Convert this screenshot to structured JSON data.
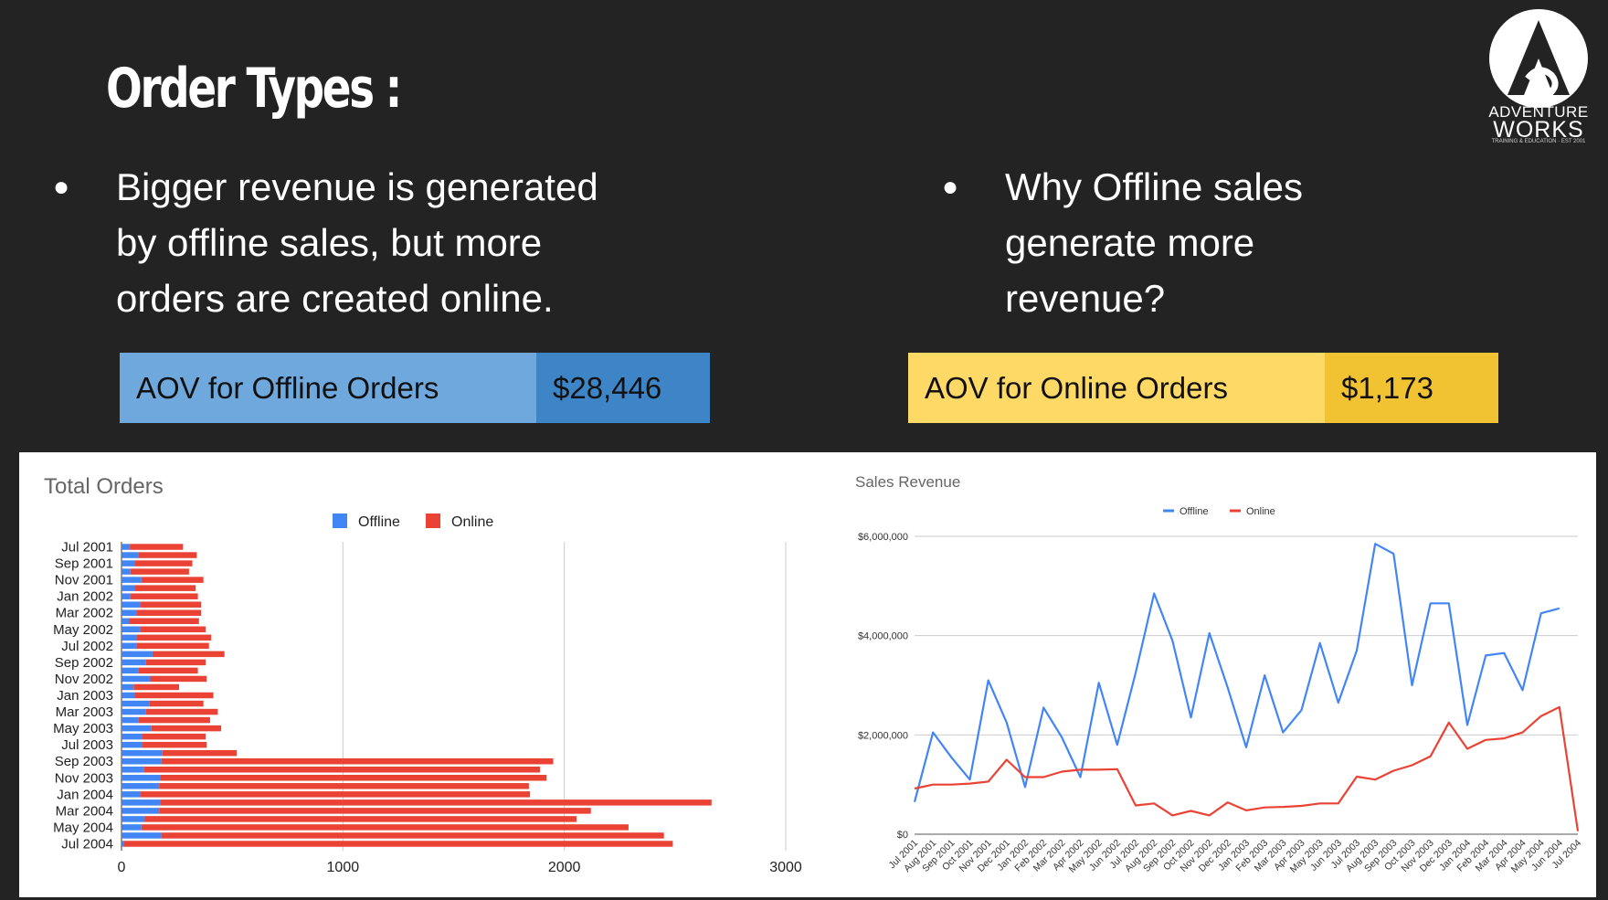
{
  "title": "Order Types :",
  "logo": {
    "line1": "ADVENTURE",
    "line2": "WORKS",
    "tagline": "TRAINING & EDUCATION · EST 2001"
  },
  "bullets": [
    {
      "lines": [
        "Bigger revenue is generated",
        "by offline sales, but more",
        "orders are created online."
      ]
    },
    {
      "lines": [
        "Why Offline sales",
        "generate more",
        "revenue?"
      ]
    }
  ],
  "aov": {
    "offline": {
      "label": "AOV for Offline Orders",
      "value": "$28,446",
      "label_color": "#6fa8dc",
      "value_color": "#3d85c6"
    },
    "online": {
      "label": "AOV for Online Orders",
      "value": "$1,173",
      "label_color": "#ffd966",
      "value_color": "#f1c232"
    }
  },
  "colors": {
    "offline": "#4285f4",
    "online": "#ea4335",
    "background": "#232323"
  },
  "chart_data": [
    {
      "type": "bar",
      "orientation": "horizontal",
      "stacked": true,
      "title": "Total Orders",
      "legend_position": "top",
      "categories": [
        "Jul 2001",
        "Aug 2001",
        "Sep 2001",
        "Oct 2001",
        "Nov 2001",
        "Dec 2001",
        "Jan 2002",
        "Feb 2002",
        "Mar 2002",
        "Apr 2002",
        "May 2002",
        "Jun 2002",
        "Jul 2002",
        "Aug 2002",
        "Sep 2002",
        "Oct 2002",
        "Nov 2002",
        "Dec 2002",
        "Jan 2003",
        "Feb 2003",
        "Mar 2003",
        "Apr 2003",
        "May 2003",
        "Jun 2003",
        "Jul 2003",
        "Aug 2003",
        "Sep 2003",
        "Oct 2003",
        "Nov 2003",
        "Dec 2003",
        "Jan 2004",
        "Feb 2004",
        "Mar 2004",
        "Apr 2004",
        "May 2004",
        "Jun 2004",
        "Jul 2004"
      ],
      "tick_labels": [
        "Jul 2001",
        "Sep 2001",
        "Nov 2001",
        "Jan 2002",
        "Mar 2002",
        "May 2002",
        "Jul 2002",
        "Sep 2002",
        "Nov 2002",
        "Jan 2003",
        "Mar 2003",
        "May 2003",
        "Jul 2003",
        "Sep 2003",
        "Nov 2003",
        "Jan 2004",
        "Mar 2004",
        "May 2004",
        "Jul 2004"
      ],
      "series": [
        {
          "name": "Offline",
          "values": [
            38,
            75,
            60,
            40,
            90,
            60,
            40,
            85,
            70,
            35,
            85,
            70,
            70,
            140,
            110,
            75,
            130,
            55,
            60,
            125,
            110,
            75,
            135,
            95,
            95,
            185,
            180,
            100,
            175,
            170,
            85,
            175,
            170,
            105,
            90,
            180,
            10
          ]
        },
        {
          "name": "Online",
          "values": [
            240,
            265,
            260,
            265,
            280,
            275,
            305,
            275,
            290,
            315,
            295,
            335,
            325,
            325,
            270,
            270,
            255,
            205,
            355,
            245,
            325,
            325,
            315,
            285,
            290,
            335,
            1770,
            1790,
            1745,
            1670,
            1760,
            2490,
            1950,
            1950,
            2200,
            2270,
            2480
          ]
        }
      ],
      "xlim": [
        0,
        3000
      ],
      "xticks": [
        0,
        1000,
        2000,
        3000
      ],
      "grid": true
    },
    {
      "type": "line",
      "title": "Sales Revenue",
      "legend_position": "top",
      "x": [
        "Jul 2001",
        "Aug 2001",
        "Sep 2001",
        "Oct 2001",
        "Nov 2001",
        "Dec 2001",
        "Jan 2002",
        "Feb 2002",
        "Mar 2002",
        "Apr 2002",
        "May 2002",
        "Jun 2002",
        "Jul 2002",
        "Aug 2002",
        "Sep 2002",
        "Oct 2002",
        "Nov 2002",
        "Dec 2002",
        "Jan 2003",
        "Feb 2003",
        "Mar 2003",
        "Apr 2003",
        "May 2003",
        "Jun 2003",
        "Jul 2003",
        "Aug 2003",
        "Sep 2003",
        "Oct 2003",
        "Nov 2003",
        "Dec 2003",
        "Jan 2004",
        "Feb 2004",
        "Mar 2004",
        "Apr 2004",
        "May 2004",
        "Jun 2004",
        "Jul 2004"
      ],
      "series": [
        {
          "name": "Offline",
          "values": [
            650000,
            2050000,
            1550000,
            1100000,
            3100000,
            2250000,
            950000,
            2550000,
            1950000,
            1150000,
            3050000,
            1800000,
            3250000,
            4850000,
            3900000,
            2350000,
            4050000,
            2950000,
            1750000,
            3200000,
            2050000,
            2500000,
            3850000,
            2650000,
            3700000,
            5850000,
            5650000,
            3000000,
            4650000,
            4650000,
            2200000,
            3600000,
            3650000,
            2900000,
            4450000,
            4550000,
            null
          ]
        },
        {
          "name": "Online",
          "values": [
            920000,
            1000000,
            1000000,
            1020000,
            1060000,
            1500000,
            1150000,
            1150000,
            1260000,
            1300000,
            1300000,
            1310000,
            580000,
            620000,
            380000,
            470000,
            380000,
            640000,
            480000,
            540000,
            550000,
            570000,
            620000,
            620000,
            1160000,
            1100000,
            1280000,
            1390000,
            1570000,
            2250000,
            1720000,
            1900000,
            1930000,
            2050000,
            2380000,
            2560000,
            60000
          ]
        }
      ],
      "ylim": [
        0,
        6000000
      ],
      "yticks": [
        "$0",
        "$2,000,000",
        "$4,000,000",
        "$6,000,000"
      ],
      "grid": true
    }
  ]
}
